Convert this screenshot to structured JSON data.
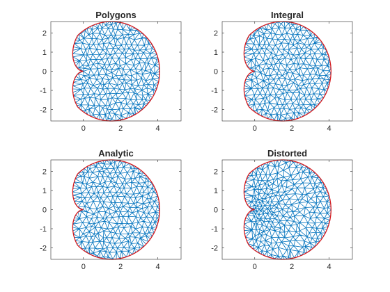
{
  "chart_data": [
    {
      "type": "mesh",
      "title": "Polygons",
      "variant": "polygons",
      "xlim": [
        -1.75,
        5.25
      ],
      "ylim": [
        -2.6,
        2.6
      ],
      "xticks": [
        0,
        2,
        4
      ],
      "xtick_labels": [
        "0",
        "2",
        "4"
      ],
      "yticks": [
        -2,
        -1,
        0,
        1,
        2
      ],
      "ytick_labels": [
        "-2",
        "-1",
        "0",
        "1",
        "2"
      ],
      "grid": false,
      "mesh_color": "#0072bd",
      "boundary_color": "#d7191c"
    },
    {
      "type": "mesh",
      "title": "Integral",
      "variant": "integral",
      "xlim": [
        -1.75,
        5.25
      ],
      "ylim": [
        -2.6,
        2.6
      ],
      "xticks": [
        0,
        2,
        4
      ],
      "xtick_labels": [
        "0",
        "2",
        "4"
      ],
      "yticks": [
        -2,
        -1,
        0,
        1,
        2
      ],
      "ytick_labels": [
        "-2",
        "-1",
        "0",
        "1",
        "2"
      ],
      "grid": false,
      "mesh_color": "#0072bd",
      "boundary_color": "#d7191c"
    },
    {
      "type": "mesh",
      "title": "Analytic",
      "variant": "analytic",
      "xlim": [
        -1.75,
        5.25
      ],
      "ylim": [
        -2.6,
        2.6
      ],
      "xticks": [
        0,
        2,
        4
      ],
      "xtick_labels": [
        "0",
        "2",
        "4"
      ],
      "yticks": [
        -2,
        -1,
        0,
        1,
        2
      ],
      "ytick_labels": [
        "-2",
        "-1",
        "0",
        "1",
        "2"
      ],
      "grid": false,
      "mesh_color": "#0072bd",
      "boundary_color": "#d7191c"
    },
    {
      "type": "mesh",
      "title": "Distorted",
      "variant": "distorted",
      "xlim": [
        -1.75,
        5.25
      ],
      "ylim": [
        -2.6,
        2.6
      ],
      "xticks": [
        0,
        2,
        4
      ],
      "xtick_labels": [
        "0",
        "2",
        "4"
      ],
      "yticks": [
        -2,
        -1,
        0,
        1,
        2
      ],
      "ytick_labels": [
        "-2",
        "-1",
        "0",
        "1",
        "2"
      ],
      "grid": false,
      "mesh_color": "#0072bd",
      "boundary_color": "#d7191c"
    }
  ]
}
